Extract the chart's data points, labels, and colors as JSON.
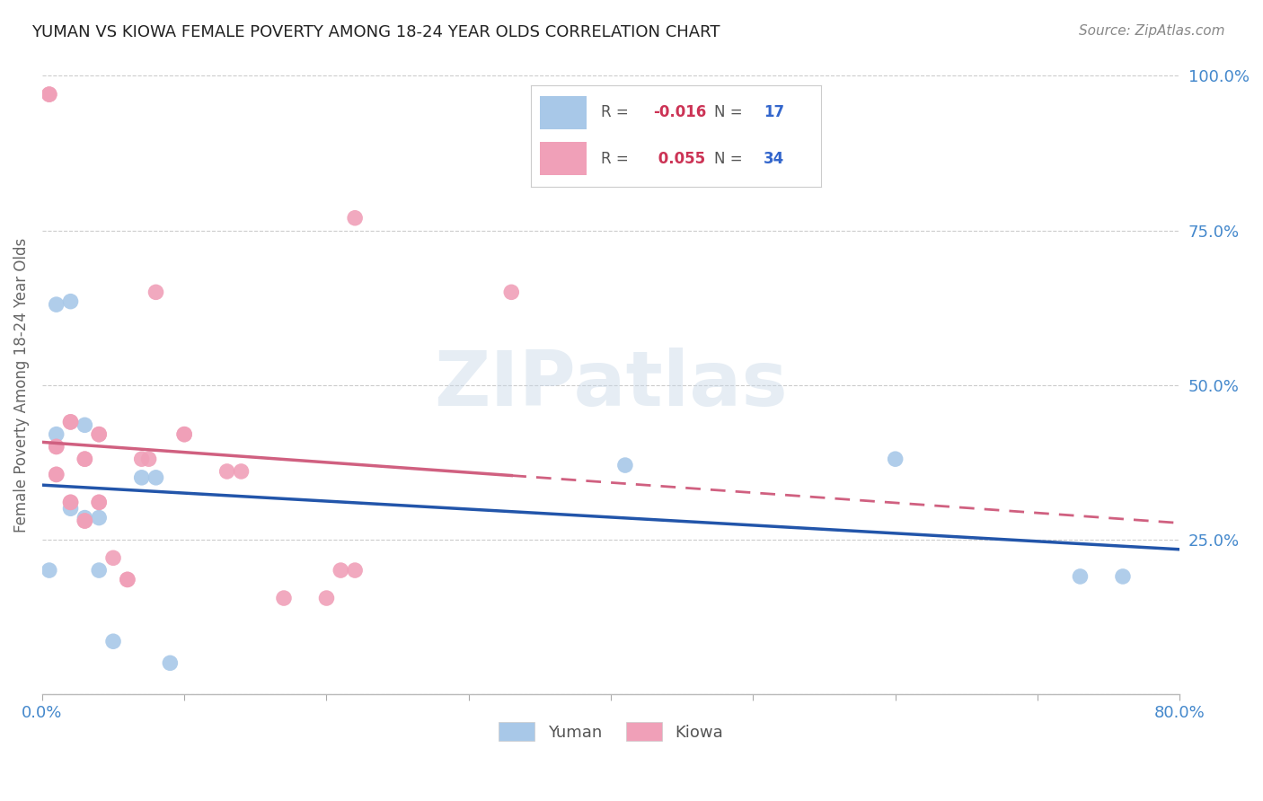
{
  "title": "YUMAN VS KIOWA FEMALE POVERTY AMONG 18-24 YEAR OLDS CORRELATION CHART",
  "source": "Source: ZipAtlas.com",
  "ylabel": "Female Poverty Among 18-24 Year Olds",
  "xlim": [
    0.0,
    0.8
  ],
  "ylim": [
    0.0,
    1.0
  ],
  "yticks": [
    0.0,
    0.25,
    0.5,
    0.75,
    1.0
  ],
  "yticklabels": [
    "",
    "25.0%",
    "50.0%",
    "75.0%",
    "100.0%"
  ],
  "yuman_R": -0.016,
  "yuman_N": 17,
  "kiowa_R": 0.055,
  "kiowa_N": 34,
  "yuman_color": "#a8c8e8",
  "kiowa_color": "#f0a0b8",
  "yuman_line_color": "#2255aa",
  "kiowa_line_color": "#d06080",
  "background_color": "#ffffff",
  "watermark": "ZIPatlas",
  "yuman_x": [
    0.005,
    0.01,
    0.01,
    0.02,
    0.02,
    0.03,
    0.03,
    0.04,
    0.04,
    0.05,
    0.07,
    0.08,
    0.09,
    0.41,
    0.6,
    0.73,
    0.76
  ],
  "yuman_y": [
    0.2,
    0.42,
    0.63,
    0.635,
    0.3,
    0.435,
    0.285,
    0.285,
    0.2,
    0.085,
    0.35,
    0.35,
    0.05,
    0.37,
    0.38,
    0.19,
    0.19
  ],
  "kiowa_x": [
    0.005,
    0.005,
    0.01,
    0.01,
    0.01,
    0.01,
    0.02,
    0.02,
    0.02,
    0.02,
    0.03,
    0.03,
    0.03,
    0.03,
    0.04,
    0.04,
    0.04,
    0.04,
    0.05,
    0.06,
    0.06,
    0.07,
    0.075,
    0.08,
    0.1,
    0.1,
    0.13,
    0.14,
    0.17,
    0.2,
    0.21,
    0.22,
    0.22,
    0.33
  ],
  "kiowa_y": [
    0.97,
    0.97,
    0.4,
    0.4,
    0.355,
    0.355,
    0.44,
    0.44,
    0.31,
    0.31,
    0.38,
    0.38,
    0.28,
    0.28,
    0.42,
    0.42,
    0.31,
    0.31,
    0.22,
    0.185,
    0.185,
    0.38,
    0.38,
    0.65,
    0.42,
    0.42,
    0.36,
    0.36,
    0.155,
    0.155,
    0.2,
    0.2,
    0.77,
    0.65
  ]
}
